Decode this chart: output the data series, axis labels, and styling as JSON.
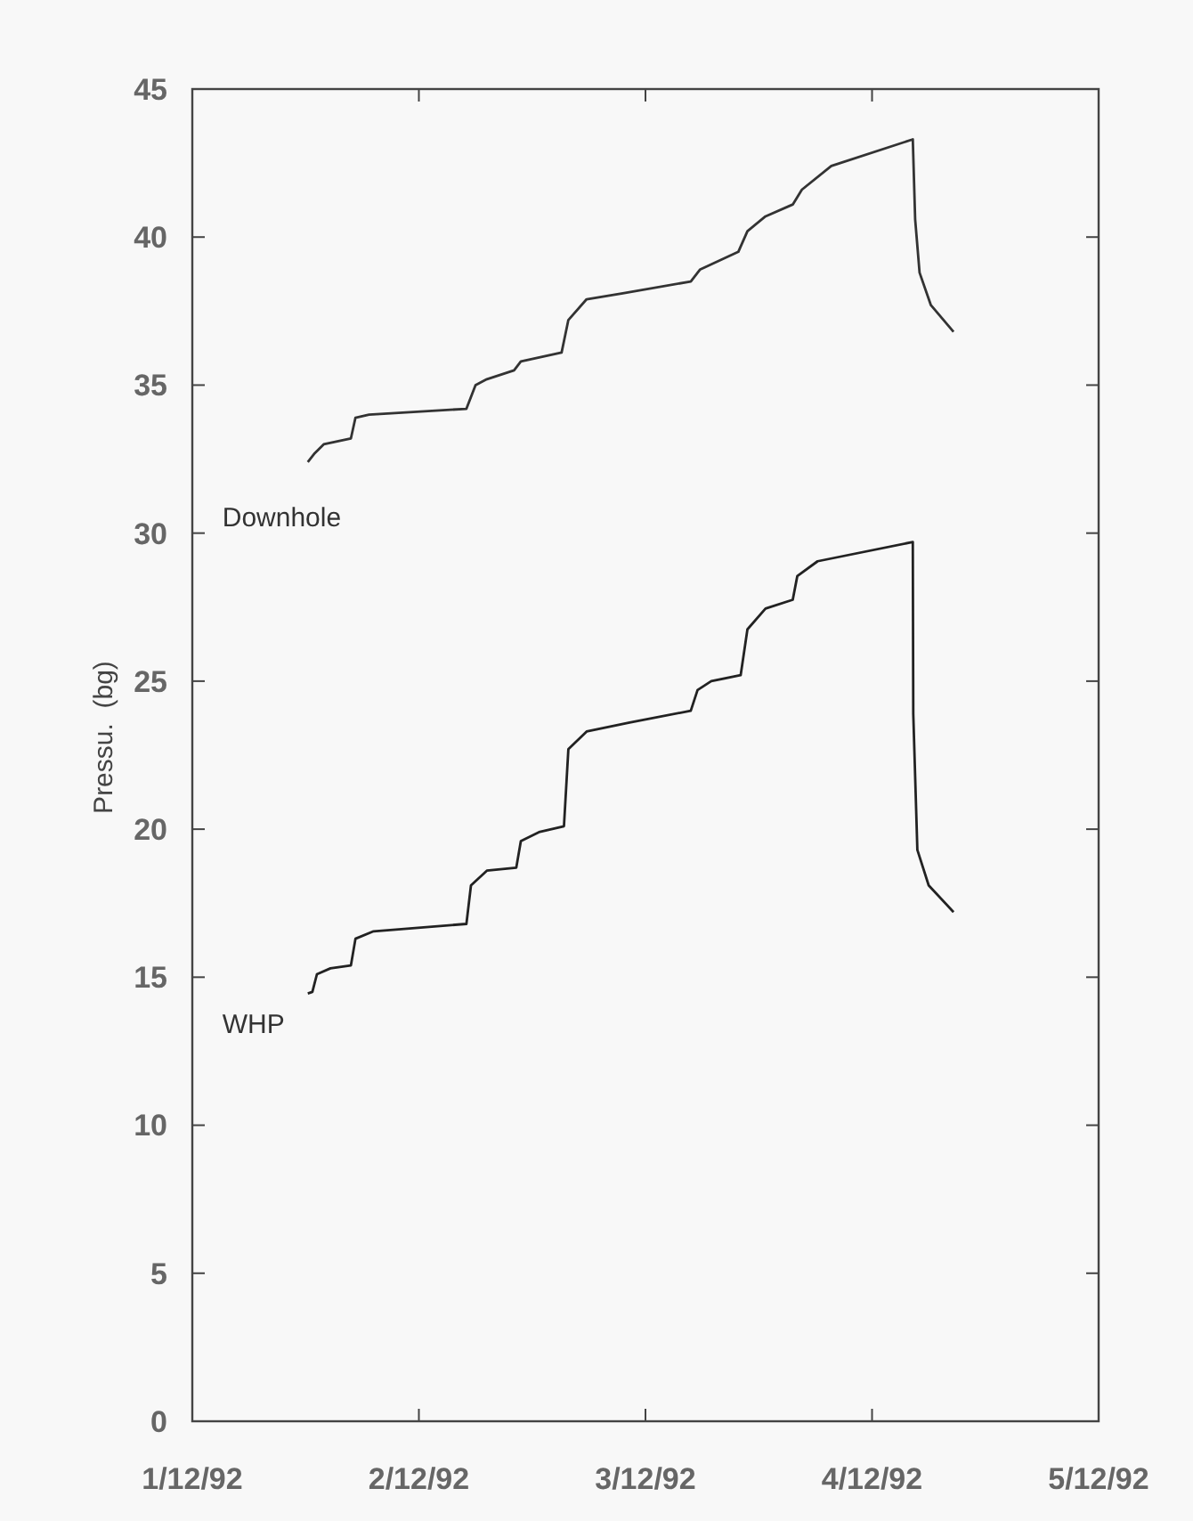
{
  "chart_data": {
    "type": "line",
    "ylabel": "Pressu.  (bg)",
    "x": [
      "1992-12-01T12:14",
      "1992-12-01T12:58",
      "1992-12-01T13:55",
      "1992-12-01T16:48",
      "1992-12-01T17:17",
      "1992-12-01T18:43",
      "1992-12-02T05:02",
      "1992-12-02T06:00",
      "1992-12-02T07:12",
      "1992-12-02T10:05",
      "1992-12-02T10:48",
      "1992-12-02T15:07",
      "1992-12-02T15:50",
      "1992-12-02T17:46",
      "1992-12-02T21:36",
      "1992-12-03T04:48",
      "1992-12-03T05:46",
      "1992-12-03T09:50",
      "1992-12-03T10:48",
      "1992-12-03T12:43",
      "1992-12-03T15:36",
      "1992-12-03T16:34",
      "1992-12-03T19:41",
      "1992-12-04T04:19",
      "1992-12-04T04:34",
      "1992-12-04T05:02",
      "1992-12-04T06:14",
      "1992-12-04T08:38"
    ],
    "series": [
      {
        "name": "Downhole",
        "color": "#333333",
        "values": [
          32.4,
          32.7,
          33.0,
          33.2,
          33.9,
          34.0,
          34.2,
          35.0,
          35.2,
          35.5,
          35.8,
          36.1,
          37.2,
          37.9,
          38.1,
          38.5,
          38.9,
          39.5,
          40.2,
          40.7,
          41.1,
          41.6,
          42.4,
          43.3,
          40.6,
          38.8,
          37.7,
          36.8
        ]
      },
      {
        "name": "WHP",
        "color": "#222222",
        "x": [
          "1992-12-01T12:14",
          "1992-12-01T12:43",
          "1992-12-01T13:12",
          "1992-12-01T14:38",
          "1992-12-01T16:48",
          "1992-12-01T17:17",
          "1992-12-01T19:12",
          "1992-12-02T05:02",
          "1992-12-02T05:31",
          "1992-12-02T07:12",
          "1992-12-02T10:19",
          "1992-12-02T10:48",
          "1992-12-02T12:43",
          "1992-12-02T15:22",
          "1992-12-02T15:50",
          "1992-12-02T17:46",
          "1992-12-02T22:19",
          "1992-12-03T04:48",
          "1992-12-03T05:31",
          "1992-12-03T06:58",
          "1992-12-03T10:05",
          "1992-12-03T10:48",
          "1992-12-03T12:43",
          "1992-12-03T15:36",
          "1992-12-03T16:05",
          "1992-12-03T18:14",
          "1992-12-04T04:19",
          "1992-12-04T04:22",
          "1992-12-04T04:48",
          "1992-12-04T06:00",
          "1992-12-04T08:38"
        ],
        "values": [
          14.45,
          14.5,
          15.1,
          15.3,
          15.4,
          16.3,
          16.55,
          16.8,
          18.1,
          18.6,
          18.7,
          19.6,
          19.9,
          20.1,
          22.7,
          23.3,
          23.6,
          24.0,
          24.7,
          25.0,
          25.2,
          26.75,
          27.45,
          27.75,
          28.55,
          29.05,
          29.7,
          23.9,
          19.3,
          18.1,
          17.2
        ]
      }
    ],
    "xlim": [
      "1992-12-01",
      "1992-12-05"
    ],
    "xticks": [
      {
        "value": "1992-12-01",
        "label": "1/12/92"
      },
      {
        "value": "1992-12-02",
        "label": "2/12/92"
      },
      {
        "value": "1992-12-03",
        "label": "3/12/92"
      },
      {
        "value": "1992-12-04",
        "label": "4/12/92"
      },
      {
        "value": "1992-12-05",
        "label": "5/12/92"
      }
    ],
    "ylim": [
      0,
      45
    ],
    "yticks": [
      0,
      5,
      10,
      15,
      20,
      25,
      30,
      35,
      40,
      45
    ],
    "grid": false,
    "marker": "none",
    "line_style": "solid"
  }
}
